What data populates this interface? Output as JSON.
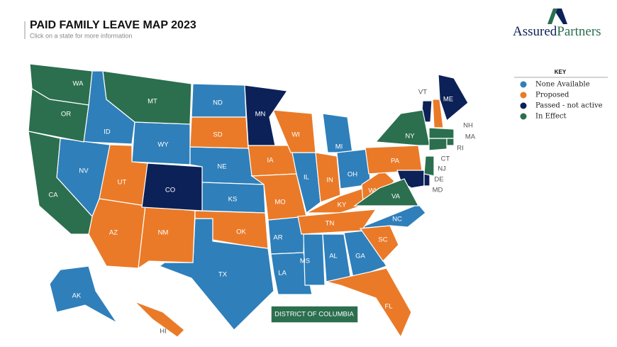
{
  "header": {
    "title": "PAID FAMILY LEAVE MAP 2023",
    "subtitle": "Click on a state for more information"
  },
  "logo": {
    "part1": "Assured",
    "part2": "Partners"
  },
  "key": {
    "title": "KEY",
    "items": [
      {
        "name": "None Available",
        "color": "#2f7fba",
        "states": [
          "ID",
          "NV",
          "WY",
          "ND",
          "NE",
          "KS",
          "TX",
          "AR",
          "LA",
          "MS",
          "AL",
          "GA",
          "NC",
          "IL",
          "MI",
          "OH",
          "AK"
        ]
      },
      {
        "name": "Proposed",
        "color": "#ea7a28",
        "states": [
          "UT",
          "AZ",
          "NM",
          "SD",
          "OK",
          "IA",
          "MO",
          "WI",
          "IN",
          "KY",
          "TN",
          "WV",
          "PA",
          "SC",
          "FL",
          "NH",
          "HI"
        ]
      },
      {
        "name": "Passed - not active",
        "color": "#0c2157",
        "states": [
          "CO",
          "MN",
          "ME",
          "VT",
          "MD",
          "DE"
        ]
      },
      {
        "name": "In Effect",
        "color": "#2b6f4e",
        "states": [
          "WA",
          "OR",
          "CA",
          "MT",
          "NY",
          "VA",
          "NJ",
          "CT",
          "MA",
          "RI",
          "DISTRICT OF COLUMBIA"
        ]
      }
    ]
  }
}
